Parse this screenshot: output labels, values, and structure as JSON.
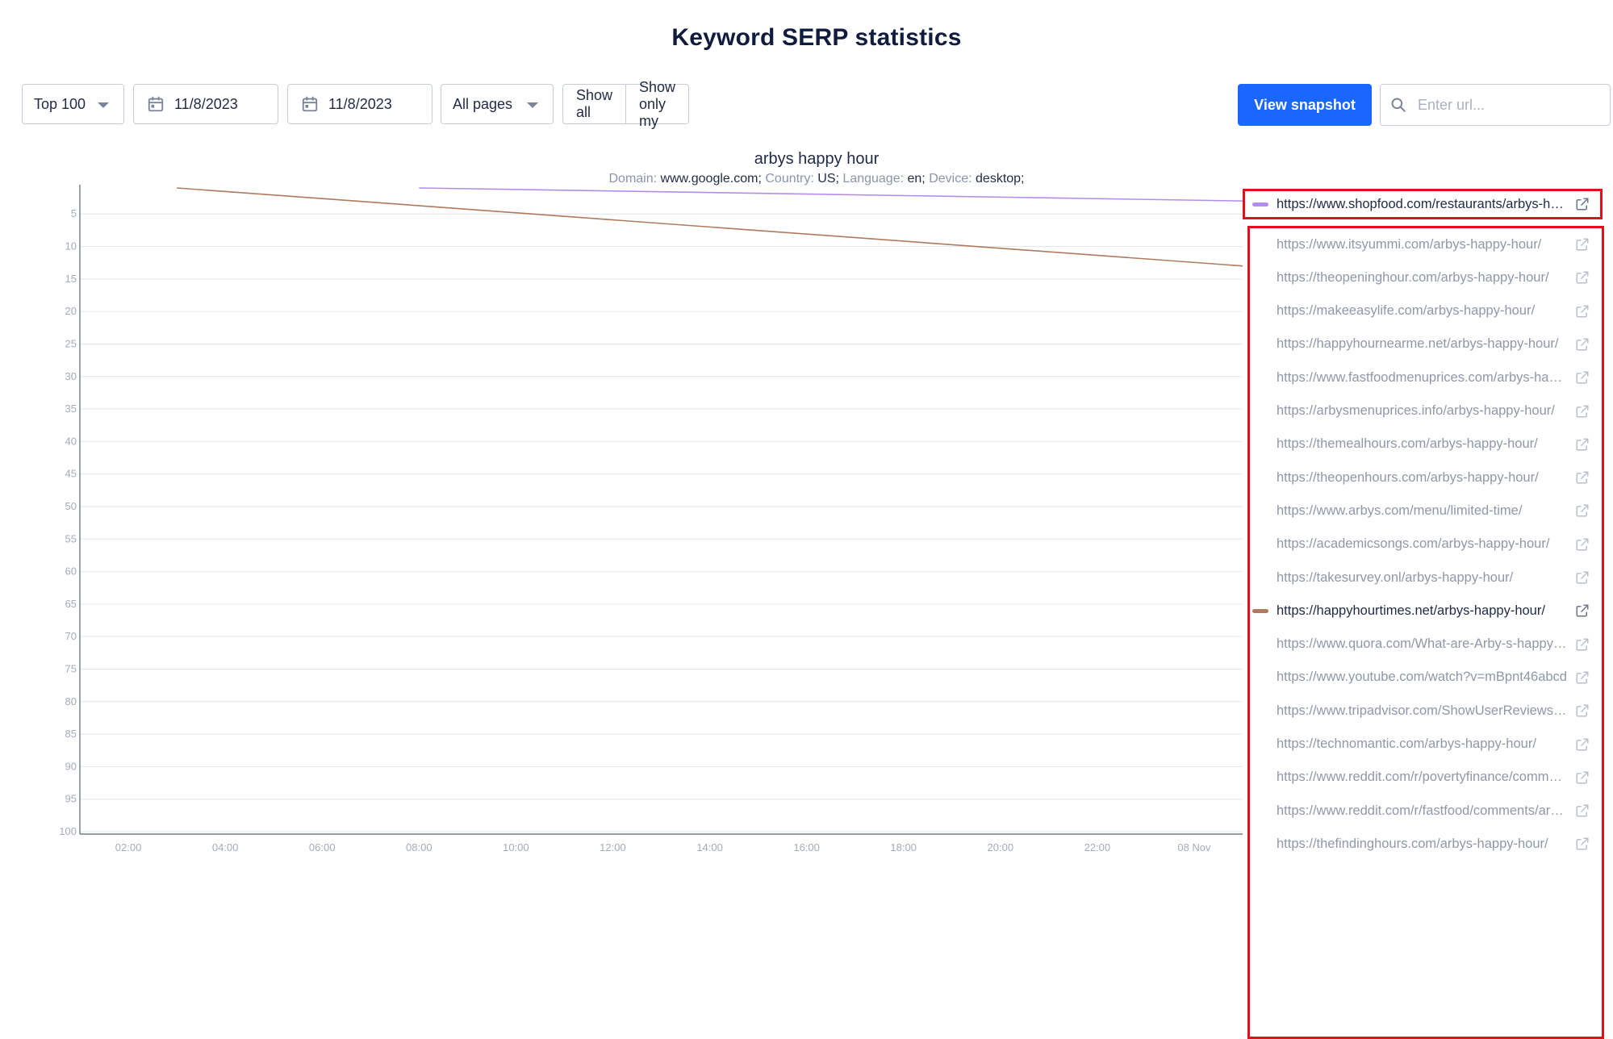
{
  "page": {
    "title": "Keyword SERP statistics"
  },
  "toolbar": {
    "top_select": "Top 100",
    "date_from": "11/8/2023",
    "date_to": "11/8/2023",
    "pages_select": "All pages",
    "show_all": "Show all",
    "show_only_my": "Show only my",
    "view_snapshot": "View snapshot",
    "url_placeholder": "Enter url..."
  },
  "chart_meta": {
    "keyword": "arbys happy hour",
    "domain_label": "Domain:",
    "domain": "www.google.com;",
    "country_label": "Country:",
    "country": "US;",
    "language_label": "Language:",
    "language": "en;",
    "device_label": "Device:",
    "device": "desktop;"
  },
  "colors": {
    "accent": "#1a66ff",
    "highlight_border": "#e0101d",
    "series_purple": "#b48cf0",
    "series_brown": "#b07a5e"
  },
  "chart_data": {
    "type": "line",
    "y_inverted": true,
    "ylim": [
      1,
      100
    ],
    "y_ticks": [
      5,
      10,
      15,
      20,
      25,
      30,
      35,
      40,
      45,
      50,
      55,
      60,
      65,
      70,
      75,
      80,
      85,
      90,
      95,
      100
    ],
    "x_ticks": [
      "02:00",
      "04:00",
      "06:00",
      "08:00",
      "10:00",
      "12:00",
      "14:00",
      "16:00",
      "18:00",
      "20:00",
      "22:00",
      "08 Nov"
    ],
    "x_range_hours": [
      1,
      25
    ],
    "grid": true,
    "series": [
      {
        "name": "https://www.shopfood.com/restaurants/arbys-happy-hour/",
        "color": "#b48cf0",
        "x_hours": [
          8,
          25
        ],
        "y": [
          1,
          3
        ]
      },
      {
        "name": "https://happyhourtimes.net/arbys-happy-hour/",
        "color": "#b07a5e",
        "x_hours": [
          3,
          25
        ],
        "y": [
          1,
          13
        ]
      }
    ]
  },
  "legend": {
    "items": [
      {
        "url": "https://www.shopfood.com/restaurants/arbys-happy-hour/",
        "active": true,
        "color": "#b48cf0"
      },
      {
        "url": "https://www.itsyummi.com/arbys-happy-hour/",
        "active": false,
        "color": ""
      },
      {
        "url": "https://theopeninghour.com/arbys-happy-hour/",
        "active": false,
        "color": ""
      },
      {
        "url": "https://makeeasylife.com/arbys-happy-hour/",
        "active": false,
        "color": ""
      },
      {
        "url": "https://happyhournearme.net/arbys-happy-hour/",
        "active": false,
        "color": ""
      },
      {
        "url": "https://www.fastfoodmenuprices.com/arbys-happy-hour/",
        "active": false,
        "color": ""
      },
      {
        "url": "https://arbysmenuprices.info/arbys-happy-hour/",
        "active": false,
        "color": ""
      },
      {
        "url": "https://themealhours.com/arbys-happy-hour/",
        "active": false,
        "color": ""
      },
      {
        "url": "https://theopenhours.com/arbys-happy-hour/",
        "active": false,
        "color": ""
      },
      {
        "url": "https://www.arbys.com/menu/limited-time/",
        "active": false,
        "color": ""
      },
      {
        "url": "https://academicsongs.com/arbys-happy-hour/",
        "active": false,
        "color": ""
      },
      {
        "url": "https://takesurvey.onl/arbys-happy-hour/",
        "active": false,
        "color": ""
      },
      {
        "url": "https://happyhourtimes.net/arbys-happy-hour/",
        "active": true,
        "color": "#b07a5e"
      },
      {
        "url": "https://www.quora.com/What-are-Arby-s-happy-hour-times",
        "active": false,
        "color": ""
      },
      {
        "url": "https://www.youtube.com/watch?v=mBpnt46abcd",
        "active": false,
        "color": ""
      },
      {
        "url": "https://www.tripadvisor.com/ShowUserReviews-arbys",
        "active": false,
        "color": ""
      },
      {
        "url": "https://technomantic.com/arbys-happy-hour/",
        "active": false,
        "color": ""
      },
      {
        "url": "https://www.reddit.com/r/povertyfinance/comments/arbys",
        "active": false,
        "color": ""
      },
      {
        "url": "https://www.reddit.com/r/fastfood/comments/arbys",
        "active": false,
        "color": ""
      },
      {
        "url": "https://thefindinghours.com/arbys-happy-hour/",
        "active": false,
        "color": ""
      }
    ]
  }
}
